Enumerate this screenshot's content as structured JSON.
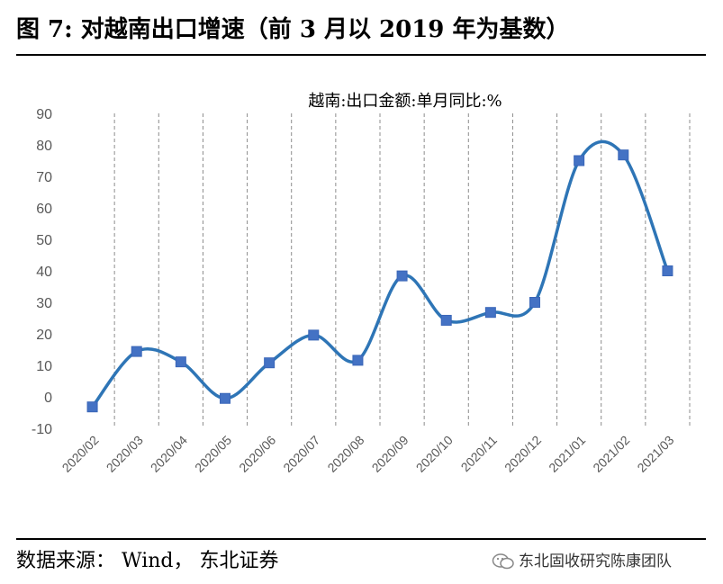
{
  "figure": {
    "title": "图  7:  对越南出口增速（前 3 月以 2019 年为基数）",
    "source": "数据来源：  Wind，  东北证券",
    "watermark": "东北固收研究陈康团队"
  },
  "chart_data": {
    "type": "line",
    "title": "越南:出口金额:单月同比:%",
    "xlabel": "",
    "ylabel": "",
    "ylim": [
      -10,
      90
    ],
    "yticks": [
      "90",
      "80",
      "70",
      "60",
      "50",
      "40",
      "30",
      "20",
      "10",
      "0",
      "-10"
    ],
    "grid": "vertical-dashed",
    "smooth": true,
    "line_color": "#2E75B6",
    "marker_color": "#4472C4",
    "categories": [
      "2020/02",
      "2020/03",
      "2020/04",
      "2020/05",
      "2020/06",
      "2020/07",
      "2020/08",
      "2020/09",
      "2020/10",
      "2020/11",
      "2020/12",
      "2021/01",
      "2021/02",
      "2021/03"
    ],
    "series": [
      {
        "values": [
          -3.2,
          14.4,
          11.1,
          -0.5,
          10.8,
          19.6,
          11.6,
          38.4,
          24.3,
          26.8,
          30.0,
          75.0,
          76.8,
          40.0
        ]
      }
    ]
  }
}
